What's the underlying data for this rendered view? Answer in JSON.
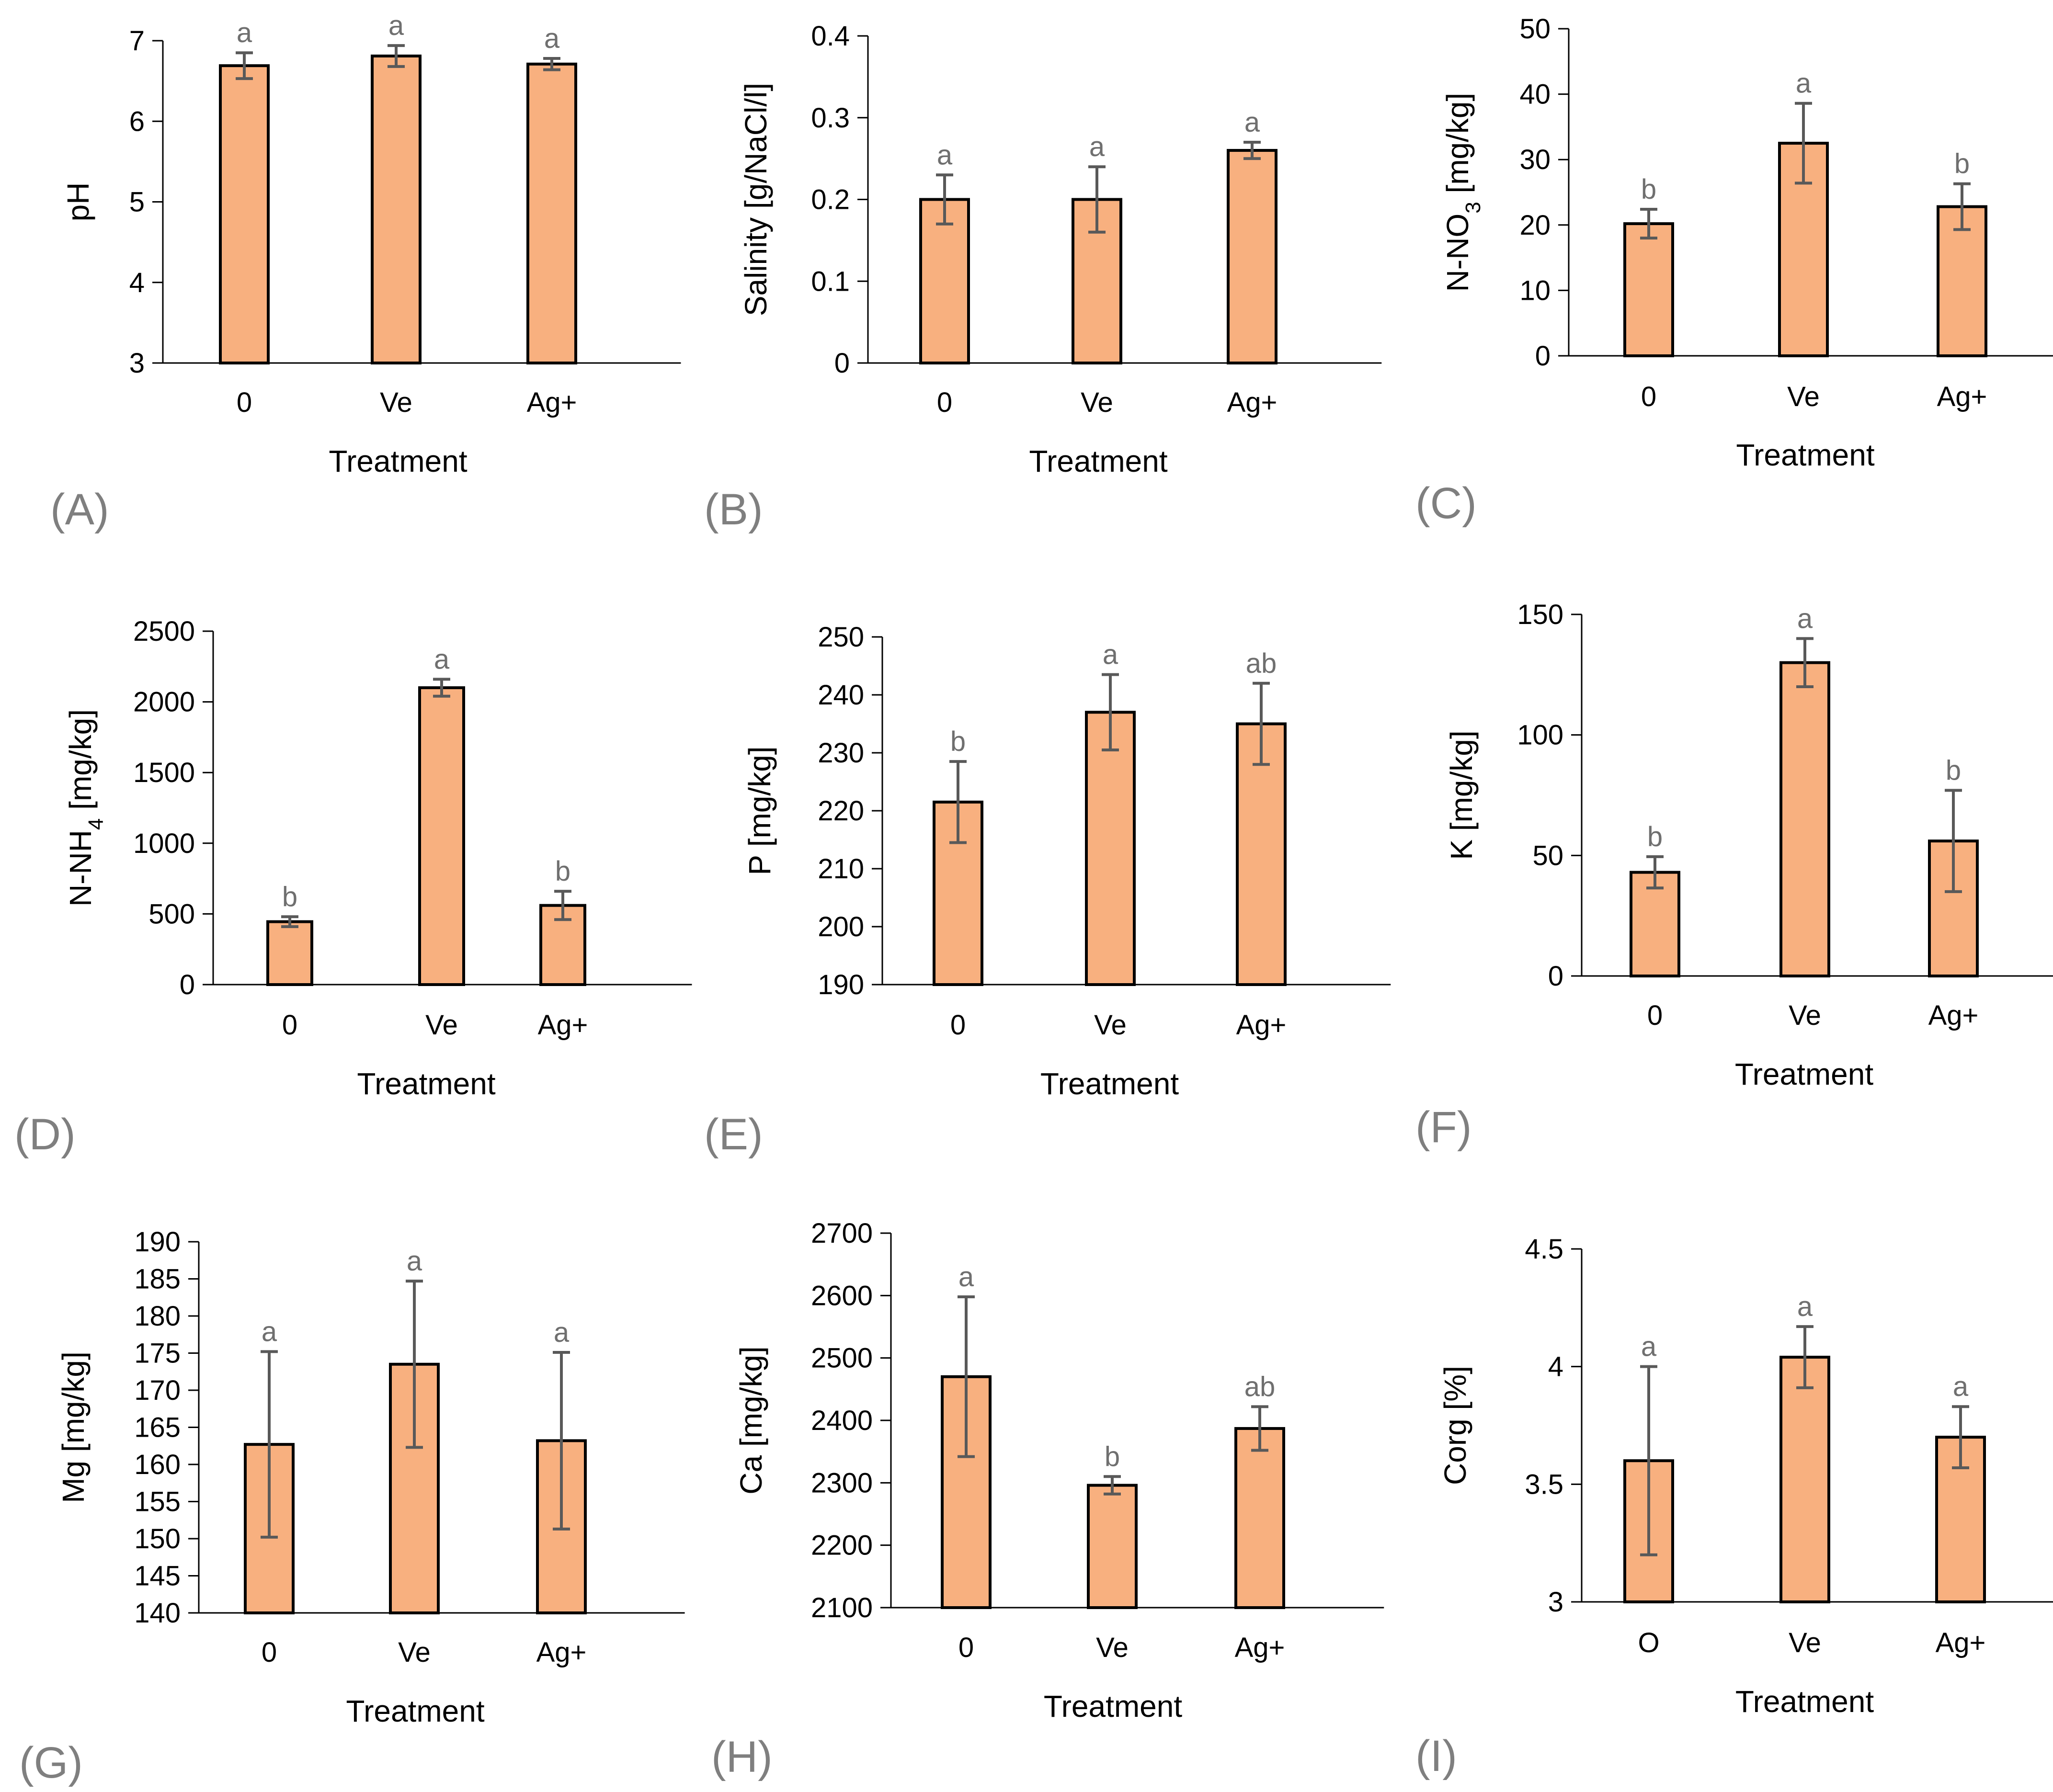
{
  "chart_data": [
    {
      "type": "bar",
      "panel": "(A)",
      "categories": [
        "0",
        "Ve",
        "Ag+"
      ],
      "values": [
        6.69,
        6.81,
        6.71
      ],
      "errors": [
        0.16,
        0.13,
        0.07
      ],
      "letters": [
        "a",
        "a",
        "a"
      ],
      "ylabel_parts": [
        {
          "t": "pH"
        }
      ],
      "xlabel": "Treatment",
      "ylim": [
        3,
        7
      ],
      "yticks": [
        3,
        4,
        5,
        6,
        7
      ],
      "ytick_labels": [
        "3",
        "4",
        "5",
        "6",
        "7"
      ],
      "ytick_color": "#000000"
    },
    {
      "type": "bar",
      "panel": "(B)",
      "categories": [
        "0",
        "Ve",
        "Ag+"
      ],
      "values": [
        0.2,
        0.2,
        0.26
      ],
      "errors": [
        0.03,
        0.04,
        0.01
      ],
      "letters": [
        "a",
        "a",
        "a"
      ],
      "ylabel_parts": [
        {
          "t": "Salinity [g/NaCl/l]"
        }
      ],
      "xlabel": "Treatment",
      "ylim": [
        0,
        0.4
      ],
      "yticks": [
        0,
        0.1,
        0.2,
        0.3,
        0.4
      ],
      "ytick_labels": [
        "0",
        "0.1",
        "0.2",
        "0.3",
        "0.4"
      ],
      "ytick_color": "#000000"
    },
    {
      "type": "bar",
      "panel": "(C)",
      "categories": [
        "0",
        "Ve",
        "Ag+"
      ],
      "values": [
        20.2,
        32.5,
        22.8
      ],
      "errors": [
        2.2,
        6.1,
        3.5
      ],
      "letters": [
        "b",
        "a",
        "b"
      ],
      "ylabel_parts": [
        {
          "t": "N-NO"
        },
        {
          "t": "3",
          "sub": true
        },
        {
          "t": " [mg/kg]"
        }
      ],
      "xlabel": "Treatment",
      "ylim": [
        0,
        50
      ],
      "yticks": [
        0,
        10,
        20,
        30,
        40,
        50
      ],
      "ytick_labels": [
        "0",
        "10",
        "20",
        "30",
        "40",
        "50"
      ],
      "ytick_color": "#7f7f7f"
    },
    {
      "type": "bar",
      "panel": "(D)",
      "categories": [
        "0",
        "Ve",
        "Ag+"
      ],
      "values": [
        445,
        2100,
        560
      ],
      "errors": [
        35,
        60,
        100
      ],
      "letters": [
        "b",
        "a",
        "b"
      ],
      "ylabel_parts": [
        {
          "t": "N-NH"
        },
        {
          "t": "4",
          "sub": true
        },
        {
          "t": " [mg/kg]"
        }
      ],
      "xlabel": "Treatment",
      "ylim": [
        0,
        2500
      ],
      "yticks": [
        0,
        500,
        1000,
        1500,
        2000,
        2500
      ],
      "ytick_labels": [
        "0",
        "500",
        "1000",
        "1500",
        "2000",
        "2500"
      ],
      "ytick_color": "#000000"
    },
    {
      "type": "bar",
      "panel": "(E)",
      "categories": [
        "0",
        "Ve",
        "Ag+"
      ],
      "values": [
        221.5,
        237,
        235
      ],
      "errors": [
        7,
        6.5,
        7
      ],
      "letters": [
        "b",
        "a",
        "ab"
      ],
      "ylabel_parts": [
        {
          "t": "P [mg/kg]"
        }
      ],
      "xlabel": "Treatment",
      "ylim": [
        190,
        250
      ],
      "yticks": [
        190,
        200,
        210,
        220,
        230,
        240,
        250
      ],
      "ytick_labels": [
        "190",
        "200",
        "210",
        "220",
        "230",
        "240",
        "250"
      ],
      "ytick_color": "#000000"
    },
    {
      "type": "bar",
      "panel": "(F)",
      "categories": [
        "0",
        "Ve",
        "Ag+"
      ],
      "values": [
        43,
        130,
        56
      ],
      "errors": [
        6.5,
        10,
        21
      ],
      "letters": [
        "b",
        "a",
        "b"
      ],
      "ylabel_parts": [
        {
          "t": "K [mg/kg]"
        }
      ],
      "xlabel": "Treatment",
      "ylim": [
        0,
        150
      ],
      "yticks": [
        0,
        50,
        100,
        150
      ],
      "ytick_labels": [
        "0",
        "50",
        "100",
        "150"
      ],
      "ytick_color": "#000000"
    },
    {
      "type": "bar",
      "panel": "(G)",
      "categories": [
        "0",
        "Ve",
        "Ag+"
      ],
      "values": [
        162.7,
        173.5,
        163.2
      ],
      "errors": [
        12.5,
        11.2,
        11.9
      ],
      "letters": [
        "a",
        "a",
        "a"
      ],
      "ylabel_parts": [
        {
          "t": "Mg [mg/kg]"
        }
      ],
      "xlabel": "Treatment",
      "ylim": [
        140,
        190
      ],
      "yticks": [
        140,
        145,
        150,
        155,
        160,
        165,
        170,
        175,
        180,
        185,
        190
      ],
      "ytick_labels": [
        "140",
        "145",
        "150",
        "155",
        "160",
        "165",
        "170",
        "175",
        "180",
        "185",
        "190"
      ],
      "ytick_color": "#000000"
    },
    {
      "type": "bar",
      "panel": "(H)",
      "categories": [
        "0",
        "Ve",
        "Ag+"
      ],
      "values": [
        2470,
        2296,
        2387
      ],
      "errors": [
        128,
        14,
        35
      ],
      "letters": [
        "a",
        "b",
        "ab"
      ],
      "ylabel_parts": [
        {
          "t": "Ca [mg/kg]"
        }
      ],
      "xlabel": "Treatment",
      "ylim": [
        2100,
        2700
      ],
      "yticks": [
        2100,
        2200,
        2300,
        2400,
        2500,
        2600,
        2700
      ],
      "ytick_labels": [
        "2100",
        "2200",
        "2300",
        "2400",
        "2500",
        "2600",
        "2700"
      ],
      "ytick_color": "#000000"
    },
    {
      "type": "bar",
      "panel": "(I)",
      "categories": [
        "O",
        "Ve",
        "Ag+"
      ],
      "values": [
        3.6,
        4.04,
        3.7
      ],
      "errors": [
        0.4,
        0.13,
        0.13
      ],
      "letters": [
        "a",
        "a",
        "a"
      ],
      "ylabel_parts": [
        {
          "t": "Corg [%]"
        }
      ],
      "xlabel": "Treatment",
      "ylim": [
        3,
        4.5
      ],
      "yticks": [
        3,
        3.5,
        4,
        4.5
      ],
      "ytick_labels": [
        "3",
        "3.5",
        "4",
        "4.5"
      ],
      "ytick_color": "#000000"
    }
  ],
  "style": {
    "bar_fill": "#F8B07F",
    "bar_stroke": "#000000",
    "error_color": "#595959",
    "letter_color": "#6f6f6f",
    "panel_label_color": "#7f7f7f"
  }
}
